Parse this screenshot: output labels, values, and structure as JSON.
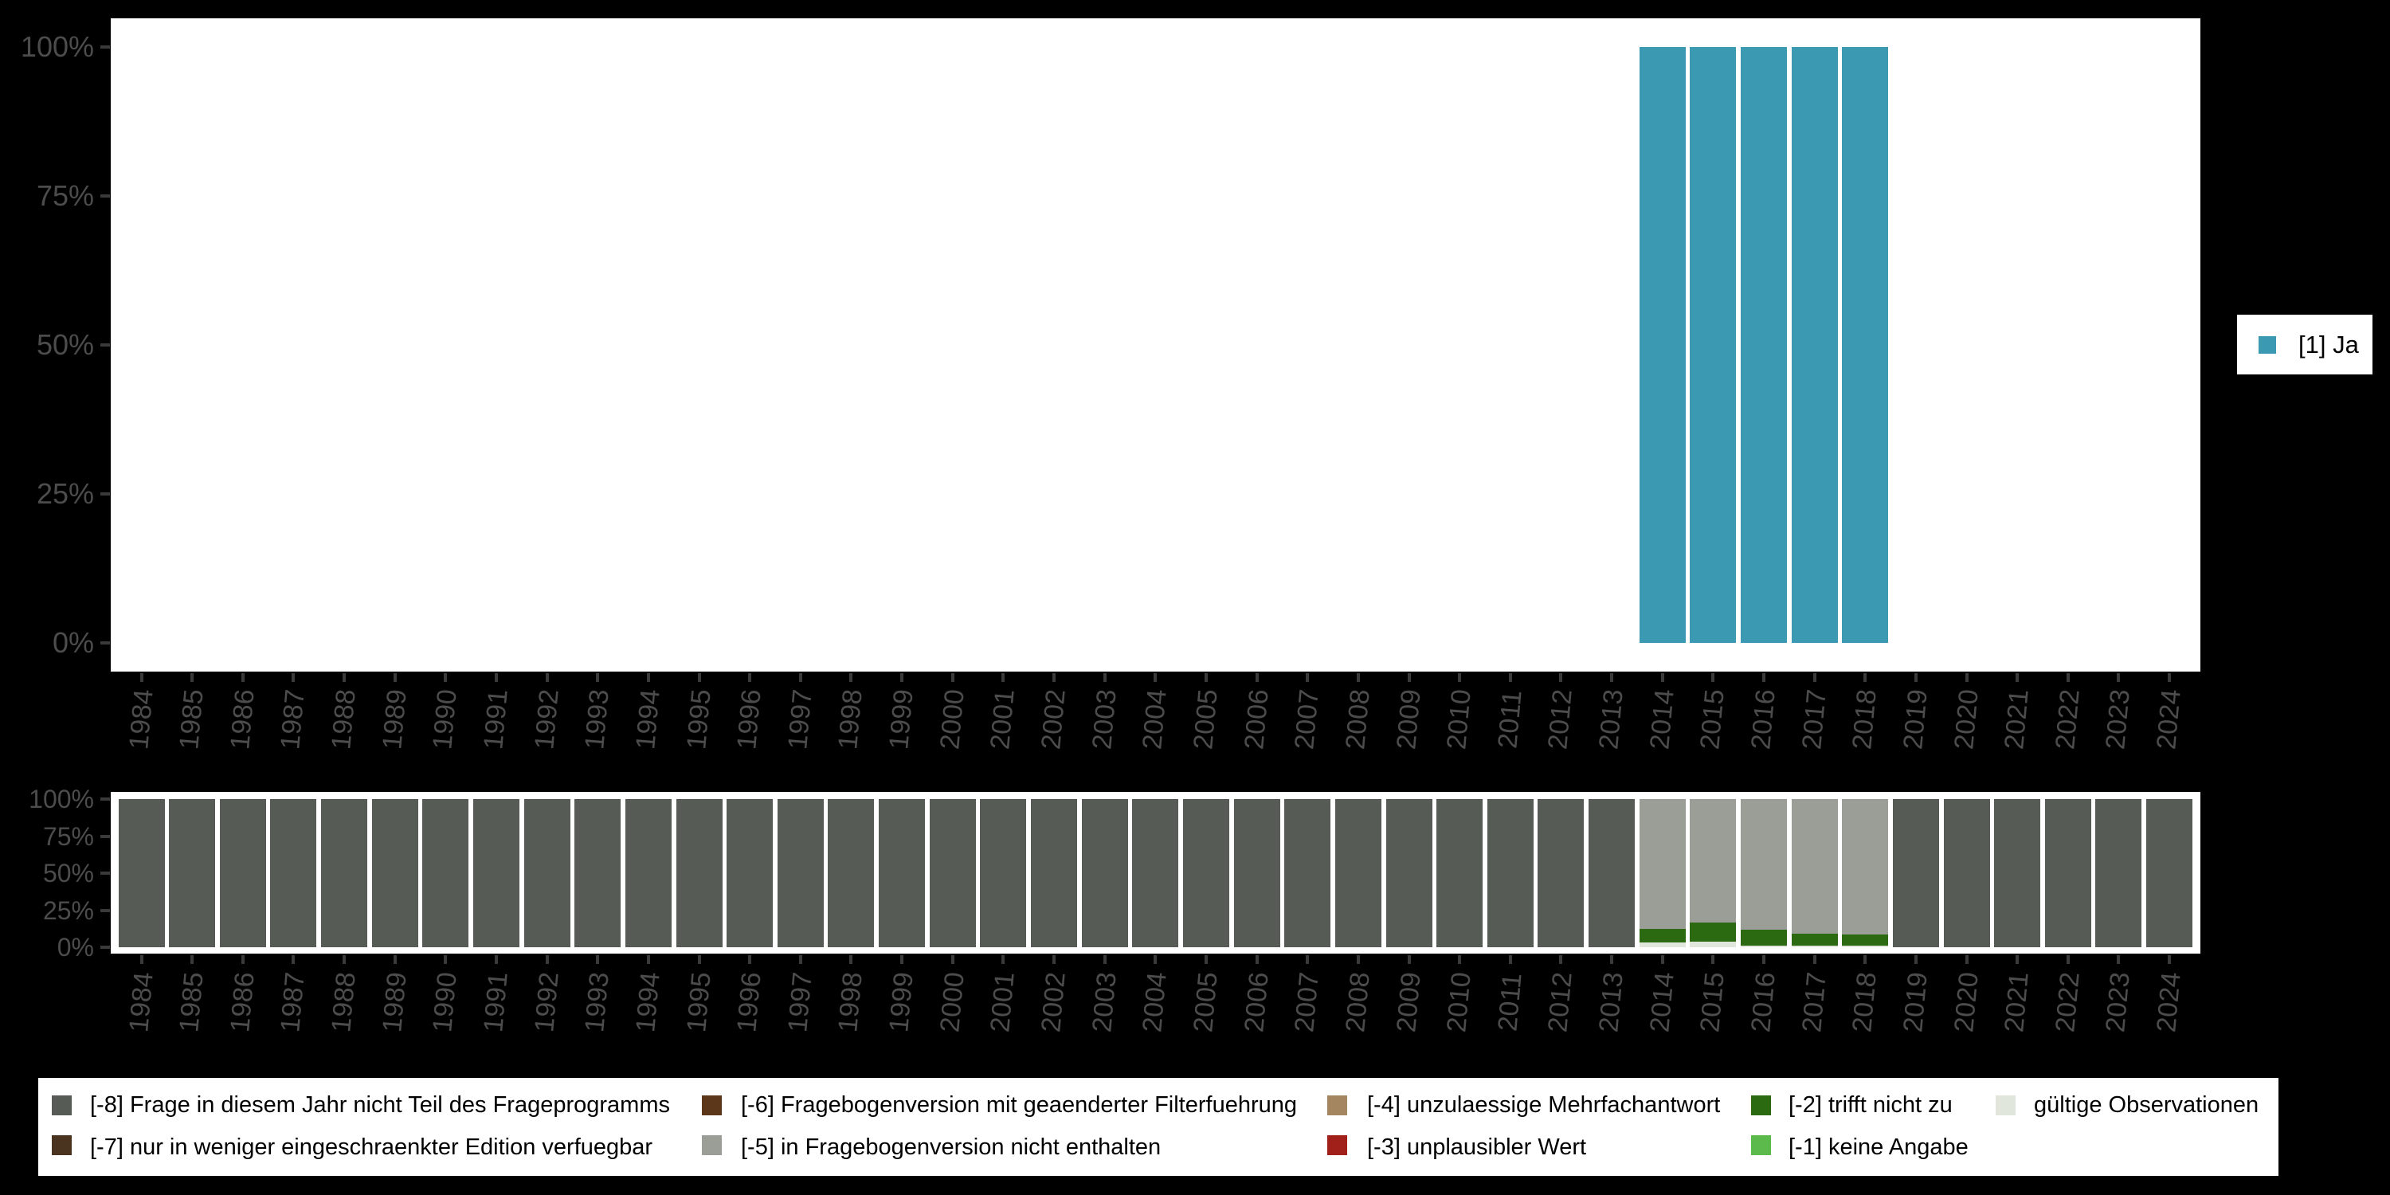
{
  "palette": {
    "ja": "#3B99B1",
    "m8": "#565C55",
    "m7": "#4A331F",
    "m6": "#5C371A",
    "m5": "#9A9E96",
    "m4": "#A48661",
    "m3": "#A2201A",
    "m2": "#2C6A12",
    "m1": "#5CBA4C",
    "valid": "#E1E6DD",
    "axis_text": "#4C4C4C",
    "tick": "#3A3A3A",
    "panel_background": "#FFFFFF",
    "page_background": "#000000"
  },
  "series_legend": {
    "label": "[1] Ja"
  },
  "missing_legend": {
    "items": [
      {
        "key": "m8",
        "label": "[-8] Frage in diesem Jahr nicht Teil des Frageprogramms",
        "col": 0,
        "row": 0
      },
      {
        "key": "m7",
        "label": "[-7] nur in weniger eingeschraenkter Edition verfuegbar",
        "col": 0,
        "row": 1
      },
      {
        "key": "m6",
        "label": "[-6] Fragebogenversion mit geaenderter Filterfuehrung",
        "col": 1,
        "row": 0
      },
      {
        "key": "m5",
        "label": "[-5] in Fragebogenversion nicht enthalten",
        "col": 1,
        "row": 1
      },
      {
        "key": "m4",
        "label": "[-4] unzulaessige Mehrfachantwort",
        "col": 2,
        "row": 0
      },
      {
        "key": "m3",
        "label": "[-3] unplausibler Wert",
        "col": 2,
        "row": 1
      },
      {
        "key": "m2",
        "label": "[-2] trifft nicht zu",
        "col": 3,
        "row": 0
      },
      {
        "key": "m1",
        "label": "[-1] keine Angabe",
        "col": 3,
        "row": 1
      },
      {
        "key": "valid",
        "label": "gültige Observationen",
        "col": 4,
        "row": 0
      }
    ]
  },
  "chart_data": [
    {
      "type": "bar",
      "title": "",
      "xlabel": "",
      "ylabel": "",
      "ylim": [
        0,
        100
      ],
      "yticks": [
        "0%",
        "25%",
        "50%",
        "75%",
        "100%"
      ],
      "grid": false,
      "legend_position": "right",
      "categories": [
        "1984",
        "1985",
        "1986",
        "1987",
        "1988",
        "1989",
        "1990",
        "1991",
        "1992",
        "1993",
        "1994",
        "1995",
        "1996",
        "1997",
        "1998",
        "1999",
        "2000",
        "2001",
        "2002",
        "2003",
        "2004",
        "2005",
        "2006",
        "2007",
        "2008",
        "2009",
        "2010",
        "2011",
        "2012",
        "2013",
        "2014",
        "2015",
        "2016",
        "2017",
        "2018",
        "2019",
        "2020",
        "2021",
        "2022",
        "2023",
        "2024"
      ],
      "series": [
        {
          "name": "[1] Ja",
          "color_key": "ja",
          "values": [
            null,
            null,
            null,
            null,
            null,
            null,
            null,
            null,
            null,
            null,
            null,
            null,
            null,
            null,
            null,
            null,
            null,
            null,
            null,
            null,
            null,
            null,
            null,
            null,
            null,
            null,
            null,
            null,
            null,
            null,
            100,
            100,
            100,
            100,
            100,
            null,
            null,
            null,
            null,
            null,
            null
          ]
        }
      ]
    },
    {
      "type": "stacked_bar",
      "title": "",
      "xlabel": "",
      "ylabel": "",
      "ylim": [
        0,
        100
      ],
      "yticks": [
        "0%",
        "25%",
        "50%",
        "75%",
        "100%"
      ],
      "grid": false,
      "legend_position": "bottom",
      "stack_order_bottom_up": [
        "valid",
        "m1",
        "m2",
        "m3",
        "m4",
        "m5",
        "m6",
        "m7",
        "m8"
      ],
      "categories": [
        "1984",
        "1985",
        "1986",
        "1987",
        "1988",
        "1989",
        "1990",
        "1991",
        "1992",
        "1993",
        "1994",
        "1995",
        "1996",
        "1997",
        "1998",
        "1999",
        "2000",
        "2001",
        "2002",
        "2003",
        "2004",
        "2005",
        "2006",
        "2007",
        "2008",
        "2009",
        "2010",
        "2011",
        "2012",
        "2013",
        "2014",
        "2015",
        "2016",
        "2017",
        "2018",
        "2019",
        "2020",
        "2021",
        "2022",
        "2023",
        "2024"
      ],
      "bars": [
        {
          "m8": 100
        },
        {
          "m8": 100
        },
        {
          "m8": 100
        },
        {
          "m8": 100
        },
        {
          "m8": 100
        },
        {
          "m8": 100
        },
        {
          "m8": 100
        },
        {
          "m8": 100
        },
        {
          "m8": 100
        },
        {
          "m8": 100
        },
        {
          "m8": 100
        },
        {
          "m8": 100
        },
        {
          "m8": 100
        },
        {
          "m8": 100
        },
        {
          "m8": 100
        },
        {
          "m8": 100
        },
        {
          "m8": 100
        },
        {
          "m8": 100
        },
        {
          "m8": 100
        },
        {
          "m8": 100
        },
        {
          "m8": 100
        },
        {
          "m8": 100
        },
        {
          "m8": 100
        },
        {
          "m8": 100
        },
        {
          "m8": 100
        },
        {
          "m8": 100
        },
        {
          "m8": 100
        },
        {
          "m8": 100
        },
        {
          "m8": 100
        },
        {
          "m8": 100
        },
        {
          "valid": 3.1,
          "m2": 9.4,
          "m5": 87.5
        },
        {
          "valid": 3.9,
          "m2": 13.0,
          "m5": 83.1
        },
        {
          "valid": 1.2,
          "m2": 10.5,
          "m5": 88.3
        },
        {
          "valid": 1.2,
          "m2": 8.1,
          "m5": 90.7
        },
        {
          "valid": 0.9,
          "m2": 7.9,
          "m5": 91.2
        },
        {
          "m8": 100
        },
        {
          "m8": 100
        },
        {
          "m8": 100
        },
        {
          "m8": 100
        },
        {
          "m8": 100
        },
        {
          "m8": 100
        }
      ]
    }
  ]
}
